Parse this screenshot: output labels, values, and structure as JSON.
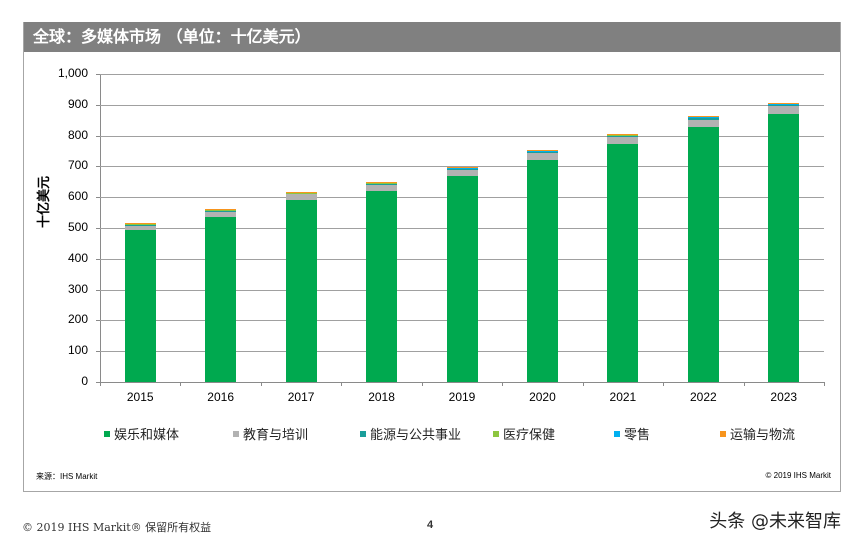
{
  "title": "全球：多媒体市场 （单位：十亿美元）",
  "ylabel": "十亿美元",
  "source": "来源：IHS Markit",
  "chart_copyright": "© 2019 IHS Markit",
  "footer": {
    "copyright": "© 2019 IHS Markit® 保留所有权益",
    "page_number": "4",
    "watermark": "头条 @未来智库"
  },
  "colors": {
    "entertainment_media": "#00a94f",
    "education_training": "#b2b2b2",
    "energy_utilities": "#1a9e9a",
    "healthcare": "#8dc63f",
    "retail": "#00b0f0",
    "transport_logistics": "#f7941d",
    "title_bar": "#808080"
  },
  "chart_data": {
    "type": "bar",
    "stacked": true,
    "title": "全球：多媒体市场 （单位：十亿美元）",
    "xlabel": "",
    "ylabel": "十亿美元",
    "ylim": [
      0,
      1000
    ],
    "yticks": [
      "0",
      "100",
      "200",
      "300",
      "400",
      "500",
      "600",
      "700",
      "800",
      "900",
      "1,000"
    ],
    "grid": true,
    "legend_position": "bottom",
    "categories": [
      "2015",
      "2016",
      "2017",
      "2018",
      "2019",
      "2020",
      "2021",
      "2022",
      "2023"
    ],
    "series": [
      {
        "name": "娱乐和媒体",
        "color": "#00a94f",
        "values": [
          492,
          537,
          592,
          621,
          668,
          721,
          774,
          827,
          870
        ]
      },
      {
        "name": "教育与培训",
        "color": "#b2b2b2",
        "values": [
          16,
          16,
          17,
          20,
          21,
          23,
          23,
          25,
          25
        ]
      },
      {
        "name": "能源与公共事业",
        "color": "#1a9e9a",
        "values": [
          3,
          3,
          3,
          3,
          3,
          3,
          3,
          4,
          4
        ]
      },
      {
        "name": "医疗保健",
        "color": "#8dc63f",
        "values": [
          1,
          1,
          1,
          1,
          1,
          1,
          1,
          1,
          1
        ]
      },
      {
        "name": "零售",
        "color": "#00b0f0",
        "values": [
          2,
          2,
          2,
          2,
          2,
          2,
          2,
          3,
          3
        ]
      },
      {
        "name": "运输与物流",
        "color": "#f7941d",
        "values": [
          2,
          2,
          2,
          2,
          3,
          3,
          3,
          3,
          3
        ]
      }
    ]
  }
}
